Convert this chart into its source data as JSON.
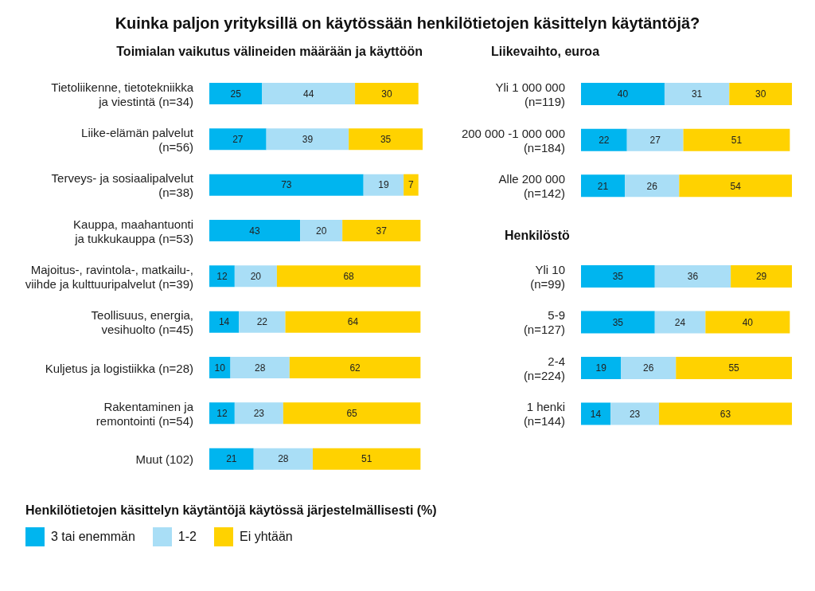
{
  "chart_data": [
    {
      "type": "bar",
      "title": "Kuinka paljon yrityksillä on käytössään henkilötietojen käsittelyn käytäntöjä?",
      "subtitle": "Toimialan vaikutus välineiden määrään ja käyttöön",
      "orientation": "horizontal",
      "stacked": true,
      "data_labels": true,
      "legend": "bottom",
      "legend_title": "Henkilötietojen käsittelyn käytäntöjä käytössä järjestelmällisesti (%)",
      "categories": [
        "Tietoliikenne, tietotekniikka\nja viestintä (n=34)",
        "Liike-elämän palvelut\n(n=56)",
        "Terveys- ja sosiaalipalvelut\n(n=38)",
        "Kauppa, maahantuonti\nja tukkukauppa (n=53)",
        "Majoitus-, ravintola-, matkailu-,\nviihde ja kulttuuripalvelut (n=39)",
        "Teollisuus, energia,\nvesihuolto (n=45)",
        "Kuljetus ja logistiikka (n=28)",
        "Rakentaminen ja\nremontointi (n=54)",
        "Muut (102)"
      ],
      "series": [
        {
          "name": "3 tai enemmän",
          "color": "#00b5ef",
          "values": [
            25,
            27,
            73,
            43,
            12,
            14,
            10,
            12,
            21
          ]
        },
        {
          "name": "1-2",
          "color": "#a9def6",
          "values": [
            44,
            39,
            19,
            20,
            20,
            22,
            28,
            23,
            28
          ]
        },
        {
          "name": "Ei yhtään",
          "color": "#ffd200",
          "values": [
            30,
            35,
            7,
            37,
            68,
            64,
            62,
            65,
            51
          ]
        }
      ]
    },
    {
      "type": "bar",
      "title": "Liikevaihto, euroa",
      "orientation": "horizontal",
      "stacked": true,
      "data_labels": true,
      "categories": [
        "Yli 1 000 000\n(n=119)",
        "200 000 -1 000 000\n(n=184)",
        "Alle 200 000\n(n=142)"
      ],
      "series": [
        {
          "color": "#00b5ef",
          "values": [
            40,
            22,
            21
          ]
        },
        {
          "color": "#a9def6",
          "values": [
            31,
            27,
            26
          ]
        },
        {
          "color": "#ffd200",
          "values": [
            30,
            51,
            54
          ]
        }
      ]
    },
    {
      "type": "bar",
      "title": "Henkilöstö",
      "orientation": "horizontal",
      "stacked": true,
      "data_labels": true,
      "categories": [
        "Yli 10\n(n=99)",
        "5-9\n(n=127)",
        "2-4\n(n=224)",
        "1 henki\n(n=144)"
      ],
      "series": [
        {
          "color": "#00b5ef",
          "values": [
            35,
            35,
            19,
            14
          ]
        },
        {
          "color": "#a9def6",
          "values": [
            36,
            24,
            26,
            23
          ]
        },
        {
          "color": "#ffd200",
          "values": [
            29,
            40,
            55,
            63
          ]
        }
      ]
    }
  ]
}
